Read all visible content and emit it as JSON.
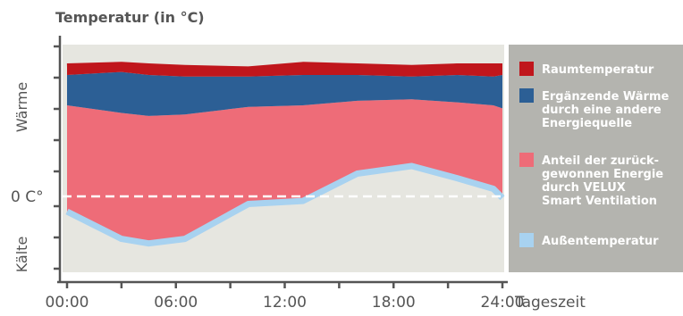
{
  "chart_data": {
    "type": "area",
    "title": "Temperatur (in °C)",
    "xlabel": "Tageszeit",
    "y_axis_labels": {
      "top": "Wärme",
      "bottom": "Kälte"
    },
    "zero_label": "0 C°",
    "x_ticks": [
      "00:00",
      "06:00",
      "12:00",
      "18:00",
      "24:00"
    ],
    "xlim": [
      0,
      24
    ],
    "ylim": [
      -5,
      10
    ],
    "x": [
      0,
      3,
      4.5,
      6.5,
      10,
      13,
      16,
      19,
      21.5,
      23.5,
      24
    ],
    "series": [
      {
        "name": "Raumtemperatur",
        "values": [
          8.5,
          8.6,
          8.5,
          8.4,
          8.3,
          8.6,
          8.5,
          8.4,
          8.5,
          8.5,
          8.5
        ]
      },
      {
        "name": "Ergänzende Wärme durch eine andere Energiequelle",
        "values": [
          8.0,
          8.2,
          8.0,
          7.9,
          7.9,
          8.0,
          8.0,
          7.9,
          8.0,
          7.9,
          8.0
        ]
      },
      {
        "name": "Anteil der zurückgewonnen Energie durch VELUX Smart Ventilation",
        "values": [
          6.0,
          5.5,
          5.3,
          5.4,
          5.9,
          6.0,
          6.3,
          6.4,
          6.2,
          6.0,
          5.8
        ]
      },
      {
        "name": "Außentemperatur",
        "values": [
          -1.0,
          -2.8,
          -3.1,
          -2.8,
          -0.5,
          -0.3,
          1.5,
          2.0,
          1.2,
          0.5,
          -0.1
        ]
      }
    ],
    "zero_line": 0,
    "grid": false,
    "legend_placement": "right",
    "colors": {
      "plot_background": "#e6e6e0",
      "legend_background": "#b4b4af",
      "axis": "#555555",
      "zero_line": "#ffffff",
      "Raumtemperatur": "#c0161c",
      "Ergänzende Wärme": "#2c5f95",
      "Anteil der zurückgewonnen Energie": "#ee6c78",
      "Außentemperatur": "#a8d2f0"
    },
    "legend": [
      {
        "lines": [
          "Raumtemperatur"
        ],
        "color": "#c0161c"
      },
      {
        "lines": [
          "Ergänzende Wärme",
          "durch eine andere",
          "Energiequelle"
        ],
        "color": "#2c5f95"
      },
      {
        "lines": [
          "Anteil der zurück-",
          "gewonnen Energie",
          "durch VELUX",
          "Smart Ventilation"
        ],
        "color": "#ee6c78"
      },
      {
        "lines": [
          "Außentemperatur"
        ],
        "color": "#a8d2f0"
      }
    ]
  }
}
